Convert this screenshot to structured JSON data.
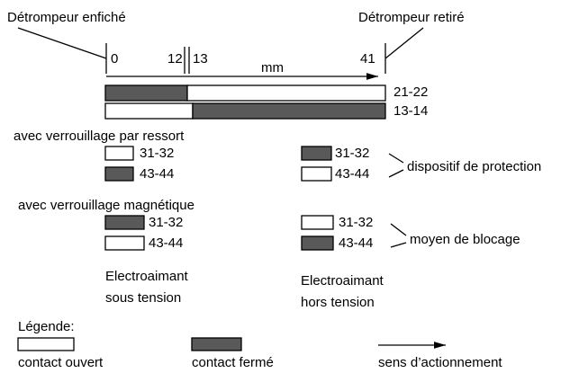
{
  "header": {
    "left": "Détrompeur enfiché",
    "right": "Détrompeur retiré"
  },
  "scale": {
    "ticks": [
      "0",
      "12",
      "13",
      "41"
    ],
    "unit": "mm"
  },
  "bars": [
    {
      "label": "21-22"
    },
    {
      "label": "13-14"
    }
  ],
  "spring": {
    "title": "avec verrouillage par ressort",
    "left": [
      "31-32",
      "43-44"
    ],
    "right": [
      "31-32",
      "43-44"
    ],
    "note": "dispositif de protection"
  },
  "magnetic": {
    "title": "avec verrouillage magnétique",
    "left": [
      "31-32",
      "43-44"
    ],
    "right": [
      "31-32",
      "43-44"
    ],
    "note": "moyen de blocage"
  },
  "captions": {
    "left": [
      "Electroaimant",
      "sous tension"
    ],
    "right": [
      "Electroaimant",
      "hors tension"
    ]
  },
  "legend": {
    "title": "Légende:",
    "open": "contact ouvert",
    "closed": "contact fermé",
    "direction": "sens d’actionnement"
  }
}
